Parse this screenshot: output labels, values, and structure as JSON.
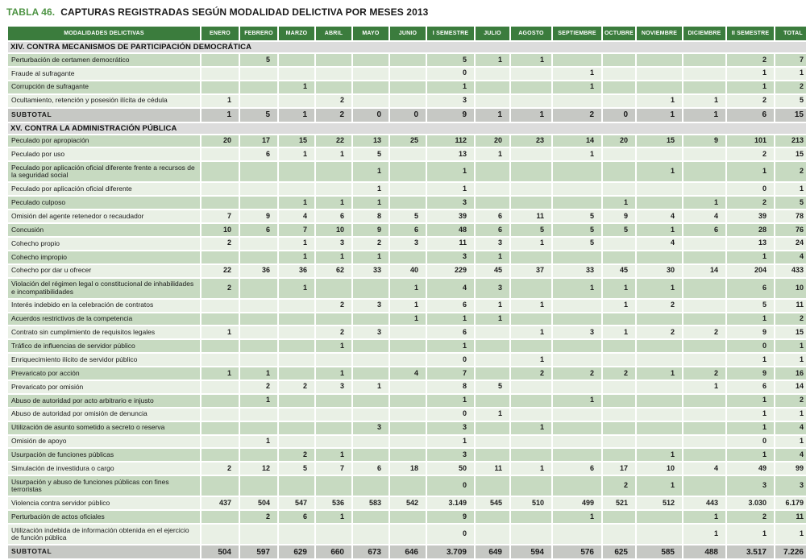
{
  "title": {
    "tag": "TABLA 46.",
    "text": "CAPTURAS REGISTRADAS SEGÚN MODALIDAD DELICTIVA POR MESES 2013"
  },
  "colors": {
    "header_green": "#3b7c3d",
    "title_green": "#4d9343",
    "row_dark": "#c7dac1",
    "row_light": "#e9f0e5",
    "section_gray": "#dcdcdc",
    "subtotal_gray": "#c6c8c4"
  },
  "table": {
    "columns": [
      "MODALIDADES DELICTIVAS",
      "ENERO",
      "FEBRERO",
      "MARZO",
      "ABRIL",
      "MAYO",
      "JUNIO",
      "I SEMESTRE",
      "JULIO",
      "AGOSTO",
      "SEPTIEMBRE",
      "OCTUBRE",
      "NOVIEMBRE",
      "DICIEMBRE",
      "II SEMESTRE",
      "TOTAL"
    ],
    "sections": [
      {
        "header": "XIV. CONTRA MECANISMOS DE PARTICIPACIÓN DEMOCRÁTICA",
        "rows": [
          {
            "label": "Perturbación de certamen democrático",
            "values": [
              "",
              "5",
              "",
              "",
              "",
              "",
              "5",
              "1",
              "1",
              "",
              "",
              "",
              "",
              "2",
              "7"
            ]
          },
          {
            "label": "Fraude al sufragante",
            "values": [
              "",
              "",
              "",
              "",
              "",
              "",
              "0",
              "",
              "",
              "1",
              "",
              "",
              "",
              "1",
              "1"
            ]
          },
          {
            "label": "Corrupción de sufragante",
            "values": [
              "",
              "",
              "1",
              "",
              "",
              "",
              "1",
              "",
              "",
              "1",
              "",
              "",
              "",
              "1",
              "2"
            ]
          },
          {
            "label": "Ocultamiento, retención y posesión ilícita de cédula",
            "values": [
              "1",
              "",
              "",
              "2",
              "",
              "",
              "3",
              "",
              "",
              "",
              "",
              "1",
              "1",
              "2",
              "5"
            ]
          }
        ],
        "subtotal": {
          "label": "SUBTOTAL",
          "values": [
            "1",
            "5",
            "1",
            "2",
            "0",
            "0",
            "9",
            "1",
            "1",
            "2",
            "0",
            "1",
            "1",
            "6",
            "15"
          ]
        }
      },
      {
        "header": "XV. CONTRA LA ADMINISTRACIÓN PÚBLICA",
        "rows": [
          {
            "label": "Peculado por apropiación",
            "values": [
              "20",
              "17",
              "15",
              "22",
              "13",
              "25",
              "112",
              "20",
              "23",
              "14",
              "20",
              "15",
              "9",
              "101",
              "213"
            ]
          },
          {
            "label": "Peculado por uso",
            "values": [
              "",
              "6",
              "1",
              "1",
              "5",
              "",
              "13",
              "1",
              "",
              "1",
              "",
              "",
              "",
              "2",
              "15"
            ]
          },
          {
            "label": "Peculado por aplicación oficial diferente frente a recursos de la seguridad social",
            "values": [
              "",
              "",
              "",
              "",
              "1",
              "",
              "1",
              "",
              "",
              "",
              "",
              "1",
              "",
              "1",
              "2"
            ]
          },
          {
            "label": "Peculado por aplicación oficial diferente",
            "values": [
              "",
              "",
              "",
              "",
              "1",
              "",
              "1",
              "",
              "",
              "",
              "",
              "",
              "",
              "0",
              "1"
            ]
          },
          {
            "label": "Peculado culposo",
            "values": [
              "",
              "",
              "1",
              "1",
              "1",
              "",
              "3",
              "",
              "",
              "",
              "1",
              "",
              "1",
              "2",
              "5"
            ]
          },
          {
            "label": "Omisión del agente retenedor o recaudador",
            "values": [
              "7",
              "9",
              "4",
              "6",
              "8",
              "5",
              "39",
              "6",
              "11",
              "5",
              "9",
              "4",
              "4",
              "39",
              "78"
            ]
          },
          {
            "label": "Concusión",
            "values": [
              "10",
              "6",
              "7",
              "10",
              "9",
              "6",
              "48",
              "6",
              "5",
              "5",
              "5",
              "1",
              "6",
              "28",
              "76"
            ]
          },
          {
            "label": "Cohecho propio",
            "values": [
              "2",
              "",
              "1",
              "3",
              "2",
              "3",
              "11",
              "3",
              "1",
              "5",
              "",
              "4",
              "",
              "13",
              "24"
            ]
          },
          {
            "label": "Cohecho impropio",
            "values": [
              "",
              "",
              "1",
              "1",
              "1",
              "",
              "3",
              "1",
              "",
              "",
              "",
              "",
              "",
              "1",
              "4"
            ]
          },
          {
            "label": "Cohecho por dar u ofrecer",
            "values": [
              "22",
              "36",
              "36",
              "62",
              "33",
              "40",
              "229",
              "45",
              "37",
              "33",
              "45",
              "30",
              "14",
              "204",
              "433"
            ]
          },
          {
            "label": "Violación del régimen legal o constitucional de inhabilidades e incompatibilidades",
            "values": [
              "2",
              "",
              "1",
              "",
              "",
              "1",
              "4",
              "3",
              "",
              "1",
              "1",
              "1",
              "",
              "6",
              "10"
            ]
          },
          {
            "label": "Interés indebido en la celebración de contratos",
            "values": [
              "",
              "",
              "",
              "2",
              "3",
              "1",
              "6",
              "1",
              "1",
              "",
              "1",
              "2",
              "",
              "5",
              "11"
            ]
          },
          {
            "label": "Acuerdos restrictivos de la competencia",
            "values": [
              "",
              "",
              "",
              "",
              "",
              "1",
              "1",
              "1",
              "",
              "",
              "",
              "",
              "",
              "1",
              "2"
            ]
          },
          {
            "label": "Contrato sin cumplimiento de requisitos legales",
            "values": [
              "1",
              "",
              "",
              "2",
              "3",
              "",
              "6",
              "",
              "1",
              "3",
              "1",
              "2",
              "2",
              "9",
              "15"
            ]
          },
          {
            "label": "Tráfico de influencias de servidor público",
            "values": [
              "",
              "",
              "",
              "1",
              "",
              "",
              "1",
              "",
              "",
              "",
              "",
              "",
              "",
              "0",
              "1"
            ]
          },
          {
            "label": "Enriquecimiento ilícito de servidor público",
            "values": [
              "",
              "",
              "",
              "",
              "",
              "",
              "0",
              "",
              "1",
              "",
              "",
              "",
              "",
              "1",
              "1"
            ]
          },
          {
            "label": "Prevaricato por acción",
            "values": [
              "1",
              "1",
              "",
              "1",
              "",
              "4",
              "7",
              "",
              "2",
              "2",
              "2",
              "1",
              "2",
              "9",
              "16"
            ]
          },
          {
            "label": "Prevaricato por omisión",
            "values": [
              "",
              "2",
              "2",
              "3",
              "1",
              "",
              "8",
              "5",
              "",
              "",
              "",
              "",
              "1",
              "6",
              "14"
            ]
          },
          {
            "label": "Abuso de autoridad por acto arbitrario e injusto",
            "values": [
              "",
              "1",
              "",
              "",
              "",
              "",
              "1",
              "",
              "",
              "1",
              "",
              "",
              "",
              "1",
              "2"
            ]
          },
          {
            "label": "Abuso de autoridad por omisión de denuncia",
            "values": [
              "",
              "",
              "",
              "",
              "",
              "",
              "0",
              "1",
              "",
              "",
              "",
              "",
              "",
              "1",
              "1"
            ]
          },
          {
            "label": "Utilización de asunto sometido a secreto o reserva",
            "values": [
              "",
              "",
              "",
              "",
              "3",
              "",
              "3",
              "",
              "1",
              "",
              "",
              "",
              "",
              "1",
              "4"
            ]
          },
          {
            "label": "Omisión de apoyo",
            "values": [
              "",
              "1",
              "",
              "",
              "",
              "",
              "1",
              "",
              "",
              "",
              "",
              "",
              "",
              "0",
              "1"
            ]
          },
          {
            "label": "Usurpación de funciones públicas",
            "values": [
              "",
              "",
              "2",
              "1",
              "",
              "",
              "3",
              "",
              "",
              "",
              "",
              "1",
              "",
              "1",
              "4"
            ]
          },
          {
            "label": "Simulación de investidura o cargo",
            "values": [
              "2",
              "12",
              "5",
              "7",
              "6",
              "18",
              "50",
              "11",
              "1",
              "6",
              "17",
              "10",
              "4",
              "49",
              "99"
            ]
          },
          {
            "label": "Usurpación y abuso de funciones públicas con fines terroristas",
            "values": [
              "",
              "",
              "",
              "",
              "",
              "",
              "0",
              "",
              "",
              "",
              "2",
              "1",
              "",
              "3",
              "3"
            ]
          },
          {
            "label": "Violencia contra servidor público",
            "values": [
              "437",
              "504",
              "547",
              "536",
              "583",
              "542",
              "3.149",
              "545",
              "510",
              "499",
              "521",
              "512",
              "443",
              "3.030",
              "6.179"
            ]
          },
          {
            "label": "Perturbación de actos oficiales",
            "values": [
              "",
              "2",
              "6",
              "1",
              "",
              "",
              "9",
              "",
              "",
              "1",
              "",
              "",
              "1",
              "2",
              "11"
            ]
          },
          {
            "label": "Utilización indebida de información obtenida en el ejercicio de función pública",
            "values": [
              "",
              "",
              "",
              "",
              "",
              "",
              "0",
              "",
              "",
              "",
              "",
              "",
              "1",
              "1",
              "1"
            ]
          }
        ],
        "subtotal": {
          "label": "SUBTOTAL",
          "values": [
            "504",
            "597",
            "629",
            "660",
            "673",
            "646",
            "3.709",
            "649",
            "594",
            "576",
            "625",
            "585",
            "488",
            "3.517",
            "7.226"
          ]
        }
      }
    ]
  }
}
